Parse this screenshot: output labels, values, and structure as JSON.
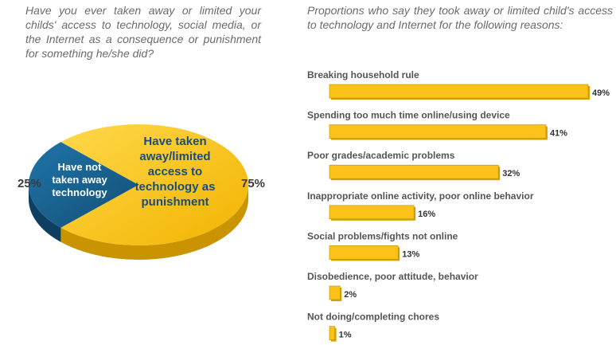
{
  "left_panel": {
    "question": "Have you ever taken away or limited your childs' access to technology, social media, or the Internet as a consequence or punishment for something he/she did?"
  },
  "right_panel": {
    "prompt": "Proportions who say they took away or limited child's access to technology and Internet for the following reasons:"
  },
  "chart_data": [
    {
      "type": "pie",
      "slices": [
        {
          "label_lines": [
            "Have not",
            "taken away",
            "technology"
          ],
          "value": 25,
          "value_label": "25%",
          "color": "#1a6391"
        },
        {
          "label_lines": [
            "Have taken",
            "away/limited",
            "access to",
            "technology as",
            "punishment"
          ],
          "value": 75,
          "value_label": "75%",
          "color": "#fcc21a"
        }
      ]
    },
    {
      "type": "bar",
      "orientation": "horizontal",
      "bar_color": "#fcc21a",
      "bar_border": "#b98b00",
      "categories": [
        "Breaking household rule",
        "Spending too much time online/using device",
        "Poor grades/academic problems",
        "Inappropriate online activity, poor online behavior",
        "Social problems/fights not online",
        "Disobedience, poor attitude, behavior",
        "Not doing/completing chores"
      ],
      "values": [
        49,
        41,
        32,
        16,
        13,
        2,
        1
      ],
      "value_labels": [
        "49%",
        "41%",
        "32%",
        "16%",
        "13%",
        "2%",
        "1%"
      ]
    }
  ]
}
